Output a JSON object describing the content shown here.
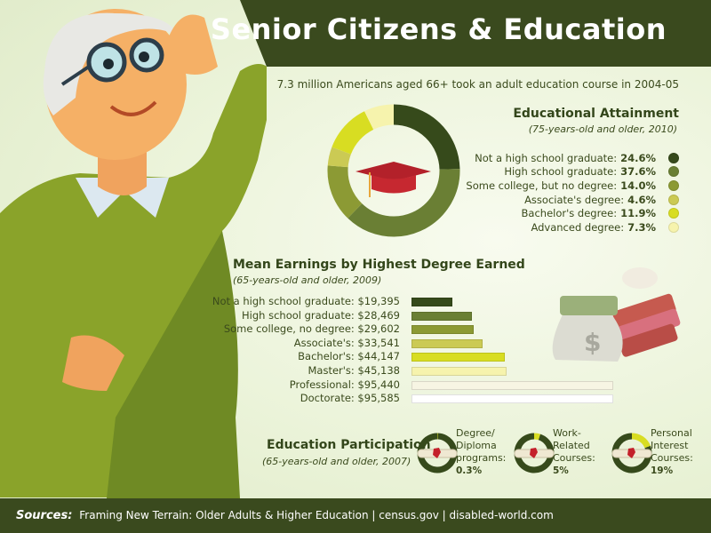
{
  "header": {
    "title": "Senior Citizens & Education"
  },
  "subtitle": "7.3 million Americans aged 66+ took an adult education course in 2004-05",
  "colors": {
    "header_bg": "#3a4a1e",
    "accent_dark": "#33461a",
    "background": "#eef5e0"
  },
  "chart_data": [
    {
      "type": "pie",
      "variant": "donut",
      "title": "Educational Attainment",
      "subtitle": "(75-years-old and older, 2010)",
      "legend_position": "right",
      "center_icon": "graduation-cap-icon",
      "categories": [
        "Not a high school graduate:",
        "High school graduate:",
        "Some college, but no degree:",
        "Associate's degree:",
        "Bachelor's degree:",
        "Advanced degree:"
      ],
      "values": [
        24.6,
        37.6,
        14.0,
        4.6,
        11.9,
        7.3
      ],
      "value_labels": [
        "24.6%",
        "37.6%",
        "14.0%",
        "4.6%",
        "11.9%",
        "7.3%"
      ],
      "colors": [
        "#364a1b",
        "#6a7f34",
        "#8c9a34",
        "#cbca54",
        "#d8dd22",
        "#f6f3ad"
      ]
    },
    {
      "type": "bar",
      "orientation": "horizontal",
      "title": "Mean Earnings by Highest Degree Earned",
      "subtitle": "(65-years-old and older, 2009)",
      "categories": [
        "Not a high school graduate:",
        "High school graduate:",
        "Some college, no degree:",
        "Associate's:",
        "Bachelor's:",
        "Master's:",
        "Professional:",
        "Doctorate:"
      ],
      "values": [
        19395,
        28469,
        29602,
        33541,
        44147,
        45138,
        95440,
        95585
      ],
      "value_labels": [
        "$19,395",
        "$28,469",
        "$29,602",
        "$33,541",
        "$44,147",
        "$45,138",
        "$95,440",
        "$95,585"
      ],
      "colors": [
        "#364a1b",
        "#6a7f34",
        "#8c9a34",
        "#cbca54",
        "#d8dd22",
        "#f6f3ad",
        "#f7f5e3",
        "#ffffff"
      ],
      "xlim": [
        0,
        95585
      ]
    },
    {
      "type": "pie",
      "variant": "donut-small-multiples",
      "title": "Education Participation",
      "subtitle": "(65-years-old and older, 2007)",
      "categories": [
        "Degree/ Diploma programs:",
        "Work-Related Courses:",
        "Personal Interest Courses:"
      ],
      "label_lines": [
        [
          "Degree/",
          "Diploma",
          "programs:"
        ],
        [
          "Work-",
          "Related",
          "Courses:"
        ],
        [
          "Personal",
          "Interest",
          "Courses:"
        ]
      ],
      "values": [
        0.3,
        5,
        19
      ],
      "value_labels": [
        "0.3%",
        "5%",
        "19%"
      ],
      "colors": {
        "highlight": "#d8dd22",
        "rest": "#364a1b"
      },
      "center_icon": "diploma-scroll-icon"
    }
  ],
  "footer": {
    "label": "Sources:",
    "text": "Framing New Terrain: Older Adults & Higher Education | census.gov | disabled-world.com"
  }
}
